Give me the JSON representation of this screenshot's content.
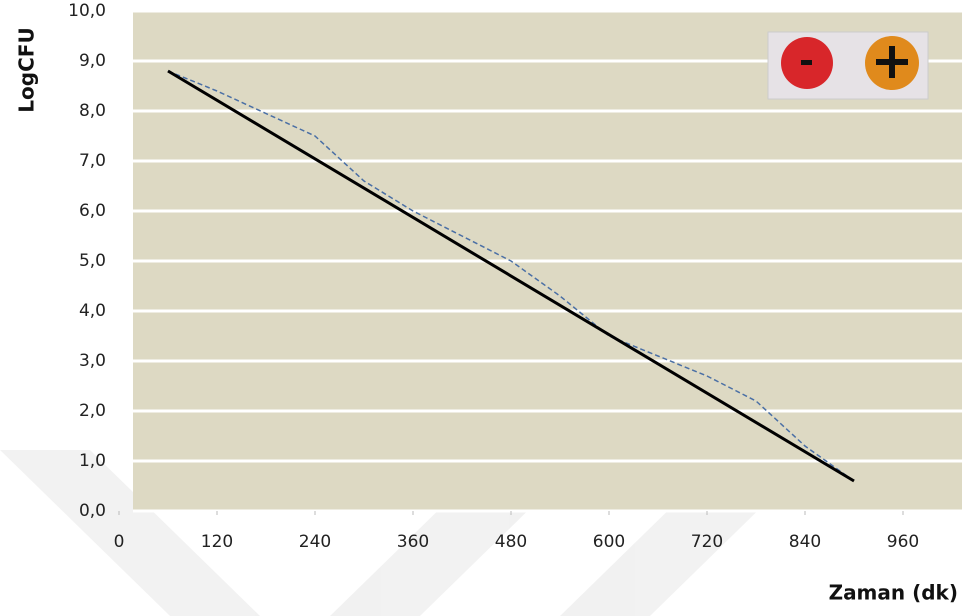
{
  "chart_data": {
    "type": "line",
    "x_label": "Zaman (dk)",
    "y_label": "LogCFU",
    "xlim": [
      0,
      1020
    ],
    "xticks": [
      0,
      120,
      240,
      360,
      480,
      600,
      720,
      840,
      960
    ],
    "ylim": [
      0,
      10
    ],
    "yticks": [
      {
        "value": 0,
        "label": "0,0"
      },
      {
        "value": 1,
        "label": "1,0"
      },
      {
        "value": 2,
        "label": "2,0"
      },
      {
        "value": 3,
        "label": "3,0"
      },
      {
        "value": 4,
        "label": "4,0"
      },
      {
        "value": 5,
        "label": "5,0"
      },
      {
        "value": 6,
        "label": "6,0"
      },
      {
        "value": 7,
        "label": "7,0"
      },
      {
        "value": 8,
        "label": "8,0"
      },
      {
        "value": 9,
        "label": "9,0"
      },
      {
        "value": 10,
        "label": "10,0"
      }
    ],
    "grid": true,
    "series": [
      {
        "color": "#4a6fa5",
        "dashed": true,
        "x": [
          60,
          120,
          240,
          300,
          360,
          420,
          480,
          540,
          600,
          660,
          720,
          780,
          840,
          900
        ],
        "values": [
          8.8,
          8.4,
          7.5,
          6.6,
          6.0,
          5.5,
          5.0,
          4.3,
          3.5,
          3.1,
          2.7,
          2.2,
          1.3,
          0.6
        ]
      },
      {
        "color": "#000000",
        "dashed": false,
        "x": [
          60,
          900
        ],
        "values": [
          8.8,
          0.6
        ]
      }
    ]
  }
}
